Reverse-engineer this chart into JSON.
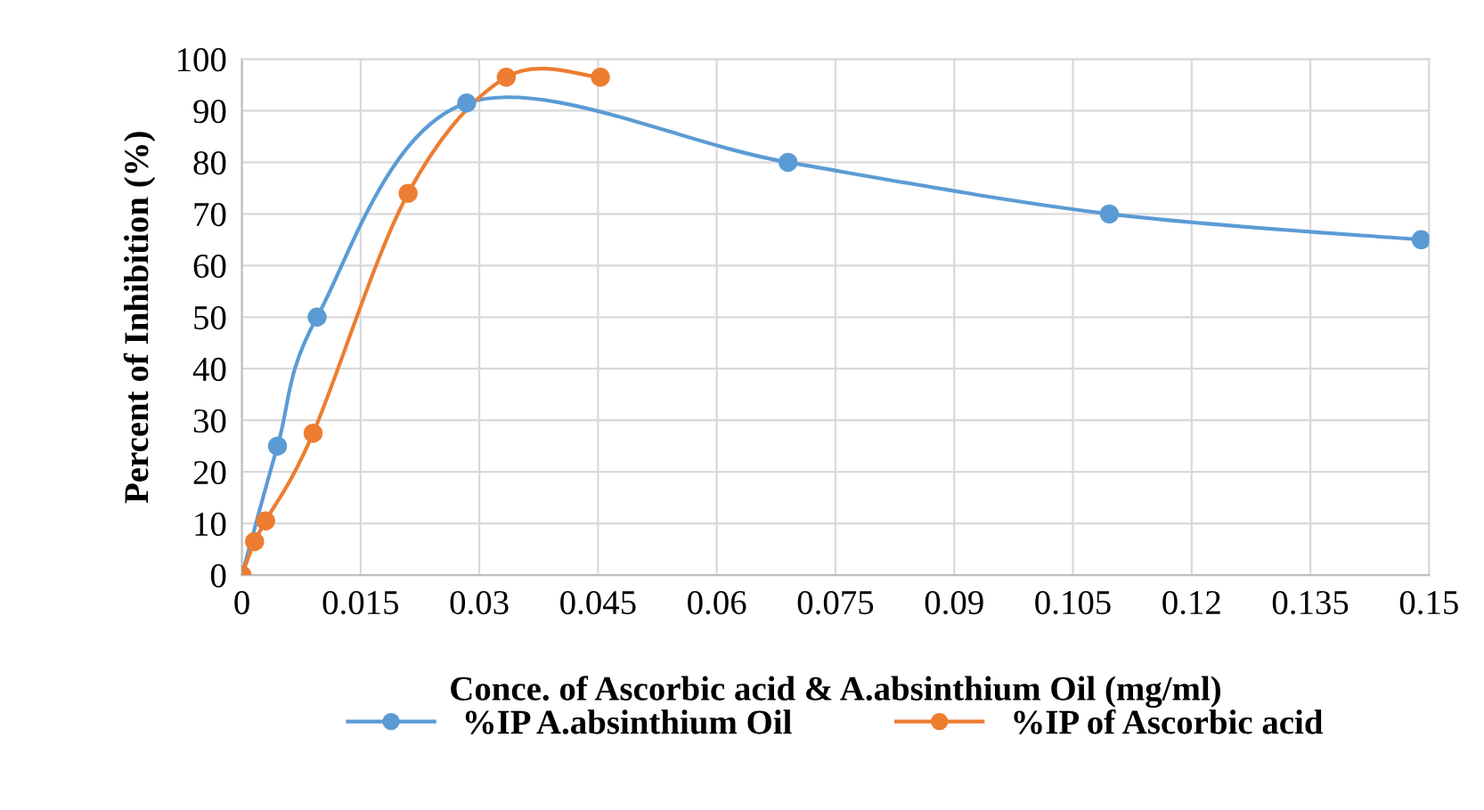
{
  "chart_data": {
    "type": "line",
    "xlabel": "Conce. of Ascorbic acid & A.absinthium Oil (mg/ml)",
    "ylabel": "Percent of Inhibition (%)",
    "xlim": [
      0,
      0.15
    ],
    "xticks": [
      0,
      0.015,
      0.03,
      0.045,
      0.06,
      0.075,
      0.09,
      0.105,
      0.12,
      0.135,
      0.15
    ],
    "ylim": [
      0,
      100
    ],
    "yticks": [
      0,
      10,
      20,
      30,
      40,
      50,
      60,
      70,
      80,
      90,
      100
    ],
    "grid": true,
    "legend": "bottom",
    "marker": "circle",
    "line_style": "solid",
    "series": [
      {
        "name": "%IP A.absinthium Oil",
        "color": "#5b9bd5",
        "x": [
          0,
          0.0045,
          0.0095,
          0.0284,
          0.069,
          0.1096,
          0.149
        ],
        "values": [
          0,
          25,
          50,
          91.5,
          80,
          70,
          65
        ]
      },
      {
        "name": "%IP of Ascorbic acid",
        "color": "#ed7d31",
        "x": [
          0,
          0.0016,
          0.003,
          0.009,
          0.021,
          0.0334,
          0.0453
        ],
        "values": [
          0,
          6.5,
          10.5,
          27.5,
          74,
          96.5,
          96.5
        ]
      }
    ]
  }
}
